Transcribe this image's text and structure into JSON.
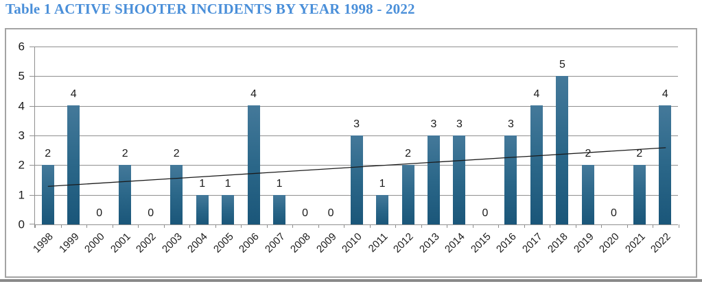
{
  "title": "Table 1 ACTIVE SHOOTER INCIDENTS BY YEAR 1998 - 2022",
  "colors": {
    "title": "#4a8fd9",
    "axis": "#8e8e8e",
    "border": "#a3a3a3",
    "bar_top": "#44799a",
    "bar_mid": "#2b6789",
    "bar_bottom": "#1a5679",
    "divider": "#898989",
    "trend": "#1a1a1a",
    "label": "#1a1a1a"
  },
  "chart_data": {
    "type": "bar",
    "title": "Table 1 ACTIVE SHOOTER INCIDENTS BY YEAR 1998 - 2022",
    "categories": [
      "1998",
      "1999",
      "2000",
      "2001",
      "2002",
      "2003",
      "2004",
      "2005",
      "2006",
      "2007",
      "2008",
      "2009",
      "2010",
      "2011",
      "2012",
      "2013",
      "2014",
      "2015",
      "2016",
      "2017",
      "2018",
      "2019",
      "2020",
      "2021",
      "2022"
    ],
    "values": [
      2,
      4,
      0,
      2,
      0,
      2,
      1,
      1,
      4,
      1,
      0,
      0,
      3,
      1,
      2,
      3,
      3,
      0,
      3,
      4,
      5,
      2,
      0,
      2,
      4
    ],
    "xlabel": "",
    "ylabel": "",
    "ylim": [
      0,
      6
    ],
    "ytick_step": 1,
    "grid": true,
    "legend": false,
    "data_labels": true,
    "x_label_rotation_deg": 45,
    "trendline": {
      "type": "linear",
      "start_value": 1.3,
      "end_value": 2.6
    }
  }
}
